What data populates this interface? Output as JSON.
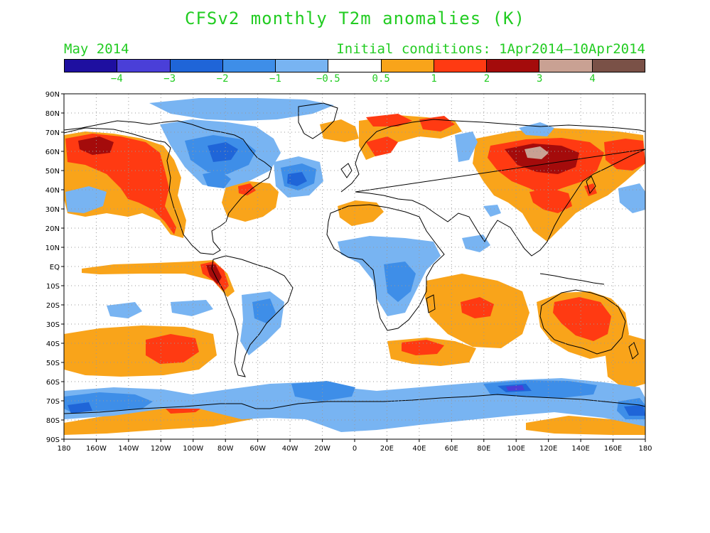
{
  "title": "CFSv2 monthly T2m anomalies (K)",
  "valid_month": "May 2014",
  "initial_conditions": "Initial conditions: 1Apr2014–10Apr2014",
  "colorbar": {
    "colors": [
      "#1e0fa0",
      "#4a3fd8",
      "#1f65d8",
      "#3e8ee8",
      "#78b4f2",
      "#ffffff",
      "#f9a41a",
      "#ff3a12",
      "#a40b0b",
      "#c9a193",
      "#7a5147"
    ],
    "labels": [
      "−4",
      "−3",
      "−2",
      "−1",
      "−0.5",
      "0.5",
      "1",
      "2",
      "3",
      "4"
    ]
  },
  "axes": {
    "lat_labels": [
      "90N",
      "80N",
      "70N",
      "60N",
      "50N",
      "40N",
      "30N",
      "20N",
      "10N",
      "EQ",
      "10S",
      "20S",
      "30S",
      "40S",
      "50S",
      "60S",
      "70S",
      "80S",
      "90S"
    ],
    "lon_labels": [
      "180",
      "160W",
      "140W",
      "120W",
      "100W",
      "80W",
      "60W",
      "40W",
      "20W",
      "0",
      "20E",
      "40E",
      "60E",
      "80E",
      "100E",
      "120E",
      "140E",
      "160E",
      "180"
    ]
  }
}
